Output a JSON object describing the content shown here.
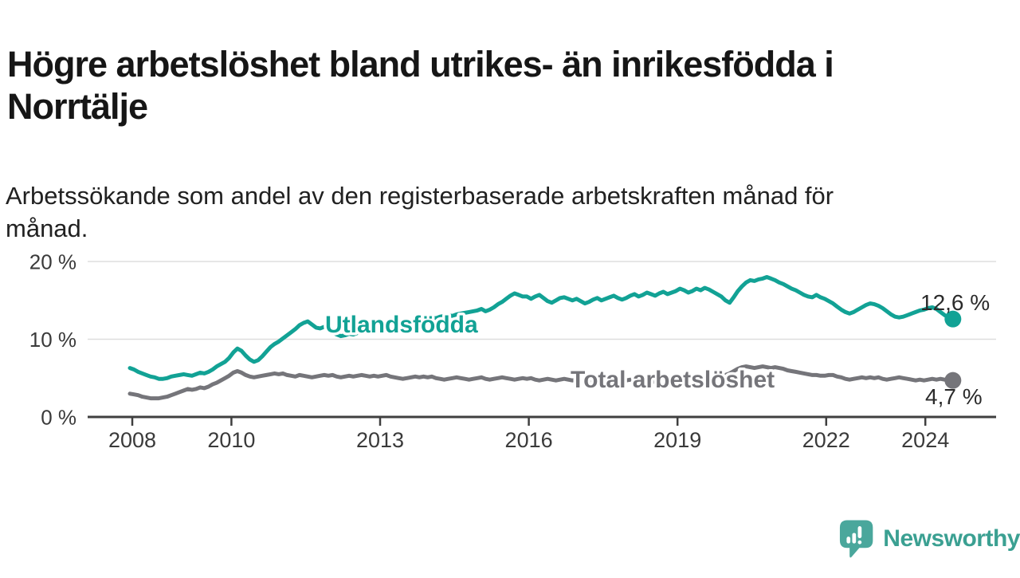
{
  "header": {
    "title_line1": "Högre arbetslöshet bland utrikes- än inrikesfödda i",
    "title_line2": "Norrtälje",
    "subtitle_line1": "Arbetssökande som andel av den registerbaserade arbetskraften månad för",
    "subtitle_line2": "månad."
  },
  "branding": {
    "logo_text": "Newsworthy",
    "logo_icon": "newsworthy-speech-bubble-bar-chart-icon",
    "logo_color": "#4aa79c",
    "logo_text_color": "#3ba092"
  },
  "colors": {
    "background": "#ffffff",
    "title_text": "#161616",
    "body_text": "#212121",
    "axis": "#3f3f3f",
    "tick_text": "#3a3a3a",
    "gridline": "#dedede",
    "series_foreign": "#12a295",
    "series_total": "#75757a",
    "end_label_text": "#2b2b2b"
  },
  "chart_data": {
    "type": "line",
    "frequency": "monthly",
    "x_start": "2008-01",
    "x_end": "2024-08",
    "ylim": [
      0,
      20
    ],
    "ytick_values": [
      0,
      10,
      20
    ],
    "ytick_labels": [
      "0 %",
      "10 %",
      "20 %"
    ],
    "xticks": [
      2008,
      2010,
      2013,
      2016,
      2019,
      2022,
      2024
    ],
    "grid": "horizontal",
    "legend": "inline-labels",
    "series": [
      {
        "name": "Utlandsfödda",
        "color": "#12a295",
        "end_label": "12,6 %",
        "last_value": 12.6,
        "values": [
          6.3,
          6.1,
          5.8,
          5.6,
          5.4,
          5.2,
          5.1,
          4.9,
          4.9,
          5.0,
          5.2,
          5.3,
          5.4,
          5.5,
          5.4,
          5.3,
          5.5,
          5.7,
          5.6,
          5.8,
          6.1,
          6.5,
          6.8,
          7.1,
          7.6,
          8.3,
          8.8,
          8.5,
          7.9,
          7.4,
          7.1,
          7.3,
          7.8,
          8.4,
          9.0,
          9.4,
          9.7,
          10.1,
          10.5,
          10.9,
          11.3,
          11.8,
          12.1,
          12.3,
          11.9,
          11.5,
          11.4,
          11.6,
          11.3,
          10.9,
          10.6,
          10.4,
          10.5,
          10.7,
          10.6,
          10.8,
          11.0,
          11.2,
          11.3,
          11.5,
          11.6,
          11.8,
          11.7,
          11.9,
          12.0,
          12.2,
          12.1,
          12.3,
          12.4,
          12.5,
          12.4,
          12.6,
          12.7,
          12.8,
          12.7,
          12.9,
          13.0,
          13.1,
          13.0,
          13.2,
          13.3,
          13.4,
          13.5,
          13.6,
          13.7,
          13.9,
          13.6,
          13.8,
          14.1,
          14.5,
          14.8,
          15.2,
          15.6,
          15.9,
          15.7,
          15.5,
          15.5,
          15.2,
          15.5,
          15.7,
          15.3,
          14.9,
          14.7,
          15.0,
          15.3,
          15.4,
          15.2,
          15.0,
          15.2,
          14.9,
          14.6,
          14.8,
          15.1,
          15.3,
          15.0,
          15.2,
          15.4,
          15.6,
          15.3,
          15.1,
          15.3,
          15.6,
          15.8,
          15.5,
          15.7,
          16.0,
          15.8,
          15.6,
          15.9,
          16.1,
          15.8,
          16.0,
          16.2,
          16.5,
          16.3,
          16.0,
          16.2,
          16.5,
          16.3,
          16.6,
          16.4,
          16.1,
          15.8,
          15.5,
          15.0,
          14.7,
          15.4,
          16.2,
          16.8,
          17.3,
          17.6,
          17.5,
          17.7,
          17.8,
          18.0,
          17.8,
          17.6,
          17.3,
          17.1,
          16.8,
          16.5,
          16.3,
          16.0,
          15.7,
          15.5,
          15.4,
          15.7,
          15.4,
          15.2,
          14.9,
          14.6,
          14.2,
          13.8,
          13.5,
          13.3,
          13.5,
          13.8,
          14.1,
          14.4,
          14.6,
          14.5,
          14.3,
          14.0,
          13.6,
          13.2,
          12.9,
          12.8,
          12.9,
          13.1,
          13.3,
          13.5,
          13.7,
          13.8,
          14.0,
          14.1,
          13.9,
          13.5,
          13.1,
          12.8,
          12.6
        ]
      },
      {
        "name": "Total arbetslöshet",
        "color": "#75757a",
        "end_label": "4,7 %",
        "last_value": 4.7,
        "values": [
          3.0,
          2.9,
          2.8,
          2.6,
          2.5,
          2.4,
          2.4,
          2.4,
          2.5,
          2.6,
          2.8,
          3.0,
          3.2,
          3.4,
          3.6,
          3.5,
          3.6,
          3.8,
          3.7,
          3.9,
          4.2,
          4.4,
          4.7,
          5.0,
          5.3,
          5.7,
          5.9,
          5.7,
          5.4,
          5.2,
          5.1,
          5.2,
          5.3,
          5.4,
          5.5,
          5.6,
          5.5,
          5.6,
          5.4,
          5.3,
          5.2,
          5.4,
          5.3,
          5.2,
          5.1,
          5.2,
          5.3,
          5.4,
          5.3,
          5.4,
          5.2,
          5.1,
          5.2,
          5.3,
          5.2,
          5.3,
          5.4,
          5.3,
          5.2,
          5.3,
          5.2,
          5.3,
          5.4,
          5.2,
          5.1,
          5.0,
          4.9,
          5.0,
          5.1,
          5.2,
          5.1,
          5.2,
          5.1,
          5.2,
          5.0,
          4.9,
          4.8,
          4.9,
          5.0,
          5.1,
          5.0,
          4.9,
          4.8,
          4.9,
          5.0,
          5.1,
          4.9,
          4.8,
          4.9,
          5.0,
          5.1,
          5.0,
          4.9,
          4.8,
          4.9,
          5.0,
          4.9,
          5.0,
          4.8,
          4.7,
          4.8,
          4.9,
          4.8,
          4.7,
          4.8,
          4.9,
          4.8,
          4.7,
          4.8,
          4.9,
          4.7,
          4.6,
          4.7,
          4.8,
          4.7,
          4.6,
          4.7,
          4.8,
          4.7,
          4.8,
          4.7,
          4.8,
          4.6,
          4.5,
          4.6,
          4.7,
          4.6,
          4.5,
          4.6,
          4.7,
          4.6,
          4.7,
          4.8,
          4.9,
          4.7,
          4.6,
          4.7,
          4.8,
          4.9,
          5.0,
          5.1,
          5.0,
          5.1,
          5.2,
          5.4,
          5.6,
          5.9,
          6.2,
          6.4,
          6.5,
          6.4,
          6.3,
          6.4,
          6.5,
          6.4,
          6.3,
          6.4,
          6.3,
          6.2,
          6.0,
          5.9,
          5.8,
          5.7,
          5.6,
          5.5,
          5.4,
          5.4,
          5.3,
          5.3,
          5.4,
          5.4,
          5.2,
          5.1,
          4.9,
          4.8,
          4.9,
          5.0,
          5.1,
          5.0,
          5.1,
          5.0,
          5.1,
          4.9,
          4.8,
          4.9,
          5.0,
          5.1,
          5.0,
          4.9,
          4.8,
          4.7,
          4.8,
          4.7,
          4.8,
          4.9,
          4.8,
          4.9,
          4.8,
          4.7,
          4.7
        ]
      }
    ]
  }
}
